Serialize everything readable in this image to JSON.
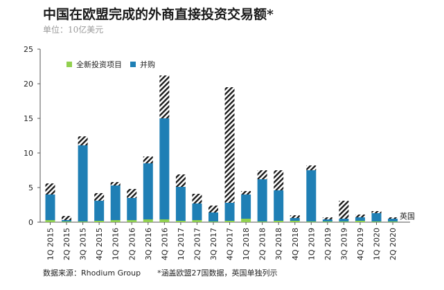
{
  "header": {
    "title": "中国在欧盟完成的外商直接投资交易额*",
    "subtitle": "单位：10亿美元"
  },
  "footer": {
    "source": "数据来源：Rhodium Group",
    "note": "*涵盖欧盟27国数据，英国单独列示"
  },
  "colors": {
    "greenfield": "#92d050",
    "mna": "#1f7fb5",
    "uk_hatch_fg": "#1a1a1a",
    "uk_hatch_bg": "#ffffff"
  },
  "chart_data": {
    "type": "bar",
    "stacked": true,
    "title": "中国在欧盟完成的外商直接投资交易额*",
    "ylabel": "单位：10亿美元",
    "ylim": [
      0,
      25
    ],
    "yticks": [
      "0",
      "5",
      "10",
      "15",
      "20",
      "25"
    ],
    "categories": [
      "1Q 2015",
      "2Q 2015",
      "3Q 2015",
      "4Q 2015",
      "1Q 2016",
      "2Q 2016",
      "3Q 2016",
      "4Q 2016",
      "1Q 2017",
      "2Q 2017",
      "3Q 2017",
      "4Q 2017",
      "1Q 2018",
      "2Q 2018",
      "3Q 2018",
      "4Q 2018",
      "1Q 2019",
      "2Q 2019",
      "3Q 2019",
      "4Q 2019",
      "1Q 2020",
      "2Q 2020"
    ],
    "series": [
      {
        "name": "全新投资项目",
        "values": [
          0.3,
          0.1,
          0.1,
          0.2,
          0.3,
          0.3,
          0.4,
          0.4,
          0.2,
          0.3,
          0.1,
          0.2,
          0.5,
          0.1,
          0.2,
          0.2,
          0.1,
          0.1,
          0.1,
          0.2,
          0.1,
          0.1
        ]
      },
      {
        "name": "并购",
        "values": [
          3.7,
          0.2,
          11.0,
          2.9,
          5.0,
          3.2,
          8.1,
          14.6,
          4.9,
          2.4,
          1.3,
          2.6,
          3.5,
          6.1,
          4.4,
          0.4,
          7.4,
          0.3,
          0.4,
          0.5,
          1.2,
          0.4
        ]
      },
      {
        "name": "英国",
        "values": [
          1.6,
          0.6,
          1.3,
          1.1,
          0.5,
          1.3,
          1.0,
          6.2,
          1.8,
          1.4,
          1.0,
          16.7,
          0.5,
          1.3,
          2.9,
          0.4,
          0.7,
          0.3,
          2.6,
          0.4,
          0.3,
          0.2
        ]
      }
    ],
    "legend": [
      "全新投资项目",
      "并购"
    ],
    "annotations": [
      "英国"
    ],
    "legend_position": "top-left"
  }
}
